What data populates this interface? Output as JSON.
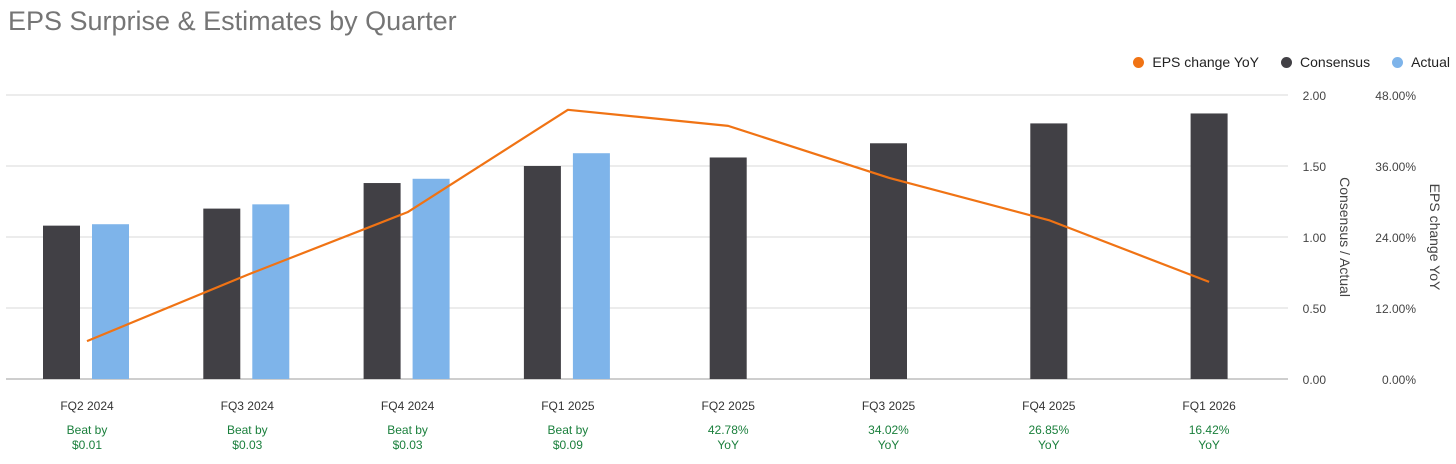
{
  "chart_data": {
    "type": "bar",
    "title": "EPS Surprise & Estimates by Quarter",
    "categories": [
      "FQ2 2024",
      "FQ3 2024",
      "FQ4 2024",
      "FQ1 2025",
      "FQ2 2025",
      "FQ3 2025",
      "FQ4 2025",
      "FQ1 2026"
    ],
    "annotations": [
      [
        "Beat by",
        "$0.01"
      ],
      [
        "Beat by",
        "$0.03"
      ],
      [
        "Beat by",
        "$0.03"
      ],
      [
        "Beat by",
        "$0.09"
      ],
      [
        "42.78%",
        "YoY"
      ],
      [
        "34.02%",
        "YoY"
      ],
      [
        "26.85%",
        "YoY"
      ],
      [
        "16.42%",
        "YoY"
      ]
    ],
    "series": [
      {
        "name": "Consensus",
        "kind": "bar",
        "axis": "left",
        "color": "#414045",
        "values": [
          1.08,
          1.2,
          1.38,
          1.5,
          1.56,
          1.66,
          1.8,
          1.87
        ]
      },
      {
        "name": "Actual",
        "kind": "bar",
        "axis": "left",
        "color": "#7eb4ea",
        "values": [
          1.09,
          1.23,
          1.41,
          1.59,
          null,
          null,
          null,
          null
        ]
      },
      {
        "name": "EPS change YoY",
        "kind": "line",
        "axis": "right",
        "color": "#f07314",
        "values": [
          6.4,
          17.6,
          28.2,
          45.5,
          42.78,
          34.02,
          26.85,
          16.42
        ]
      }
    ],
    "left_axis": {
      "label": "Consensus / Actual",
      "ticks": [
        "0.00",
        "0.50",
        "1.00",
        "1.50",
        "2.00"
      ],
      "ylim": [
        0,
        2
      ]
    },
    "right_axis": {
      "label": "EPS change YoY",
      "ticks": [
        "0.00%",
        "12.00%",
        "24.00%",
        "36.00%",
        "48.00%"
      ],
      "ylim": [
        0,
        48
      ]
    },
    "grid": true,
    "legend_position": "top-right",
    "legend_order": [
      "EPS change YoY",
      "Consensus",
      "Actual"
    ],
    "annotation_color": "#1a7f3c"
  }
}
